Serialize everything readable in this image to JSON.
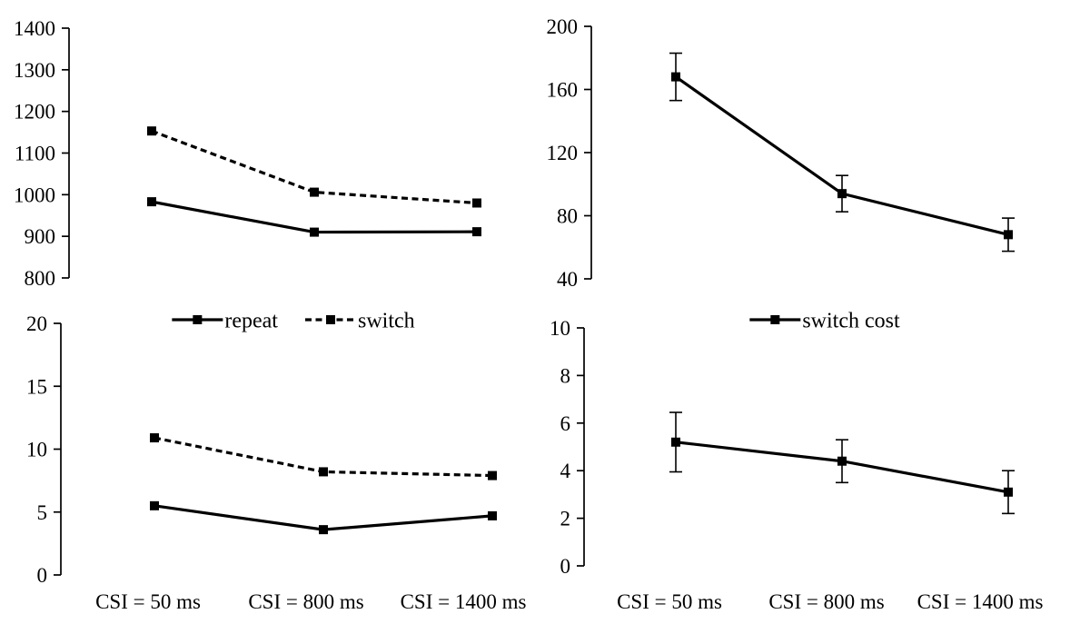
{
  "figure": {
    "background": "#ffffff",
    "ink_color": "#000000"
  },
  "categories": [
    "CSI = 50 ms",
    "CSI = 800 ms",
    "CSI = 1400 ms"
  ],
  "legends": [
    {
      "column": "left",
      "entries": [
        {
          "label": "repeat",
          "line_style": "solid",
          "marker": "square"
        },
        {
          "label": "switch",
          "line_style": "dashed",
          "marker": "square"
        }
      ]
    },
    {
      "column": "right",
      "entries": [
        {
          "label": "switch cost",
          "line_style": "solid",
          "marker": "square"
        }
      ]
    }
  ],
  "chart_data": [
    {
      "id": "rt",
      "position": "top-left",
      "type": "line",
      "categories": [
        "CSI = 50 ms",
        "CSI = 800 ms",
        "CSI = 1400 ms"
      ],
      "ylim": [
        800,
        1400
      ],
      "yticks": [
        800,
        900,
        1000,
        1100,
        1200,
        1300,
        1400
      ],
      "grid": false,
      "x_tick_labels_visible": false,
      "series": [
        {
          "name": "repeat",
          "line_style": "solid",
          "marker": "square",
          "values": [
            983,
            910,
            911
          ]
        },
        {
          "name": "switch",
          "line_style": "dashed",
          "marker": "square",
          "values": [
            1153,
            1006,
            980
          ]
        }
      ]
    },
    {
      "id": "rt-switch-cost",
      "position": "top-right",
      "type": "line",
      "categories": [
        "CSI = 50 ms",
        "CSI = 800 ms",
        "CSI = 1400 ms"
      ],
      "ylim": [
        40,
        200
      ],
      "yticks": [
        40,
        80,
        120,
        160,
        200
      ],
      "grid": false,
      "x_tick_labels_visible": false,
      "series": [
        {
          "name": "switch cost",
          "line_style": "solid",
          "marker": "square",
          "values": [
            168,
            94,
            68
          ],
          "error": [
            15,
            11.5,
            10.5
          ]
        }
      ]
    },
    {
      "id": "error-rate",
      "position": "bottom-left",
      "type": "line",
      "categories": [
        "CSI = 50 ms",
        "CSI = 800 ms",
        "CSI = 1400 ms"
      ],
      "ylim": [
        0,
        20
      ],
      "yticks": [
        0,
        5,
        10,
        15,
        20
      ],
      "grid": false,
      "x_tick_labels_visible": true,
      "series": [
        {
          "name": "repeat",
          "line_style": "solid",
          "marker": "square",
          "values": [
            5.5,
            3.6,
            4.7
          ]
        },
        {
          "name": "switch",
          "line_style": "dashed",
          "marker": "square",
          "values": [
            10.9,
            8.2,
            7.9
          ]
        }
      ]
    },
    {
      "id": "error-switch-cost",
      "position": "bottom-right",
      "type": "line",
      "categories": [
        "CSI = 50 ms",
        "CSI = 800 ms",
        "CSI = 1400 ms"
      ],
      "ylim": [
        0,
        10
      ],
      "yticks": [
        0,
        2,
        4,
        6,
        8,
        10
      ],
      "grid": false,
      "x_tick_labels_visible": true,
      "series": [
        {
          "name": "switch cost",
          "line_style": "solid",
          "marker": "square",
          "values": [
            5.2,
            4.4,
            3.1
          ],
          "error": [
            1.25,
            0.9,
            0.9
          ]
        }
      ]
    }
  ]
}
